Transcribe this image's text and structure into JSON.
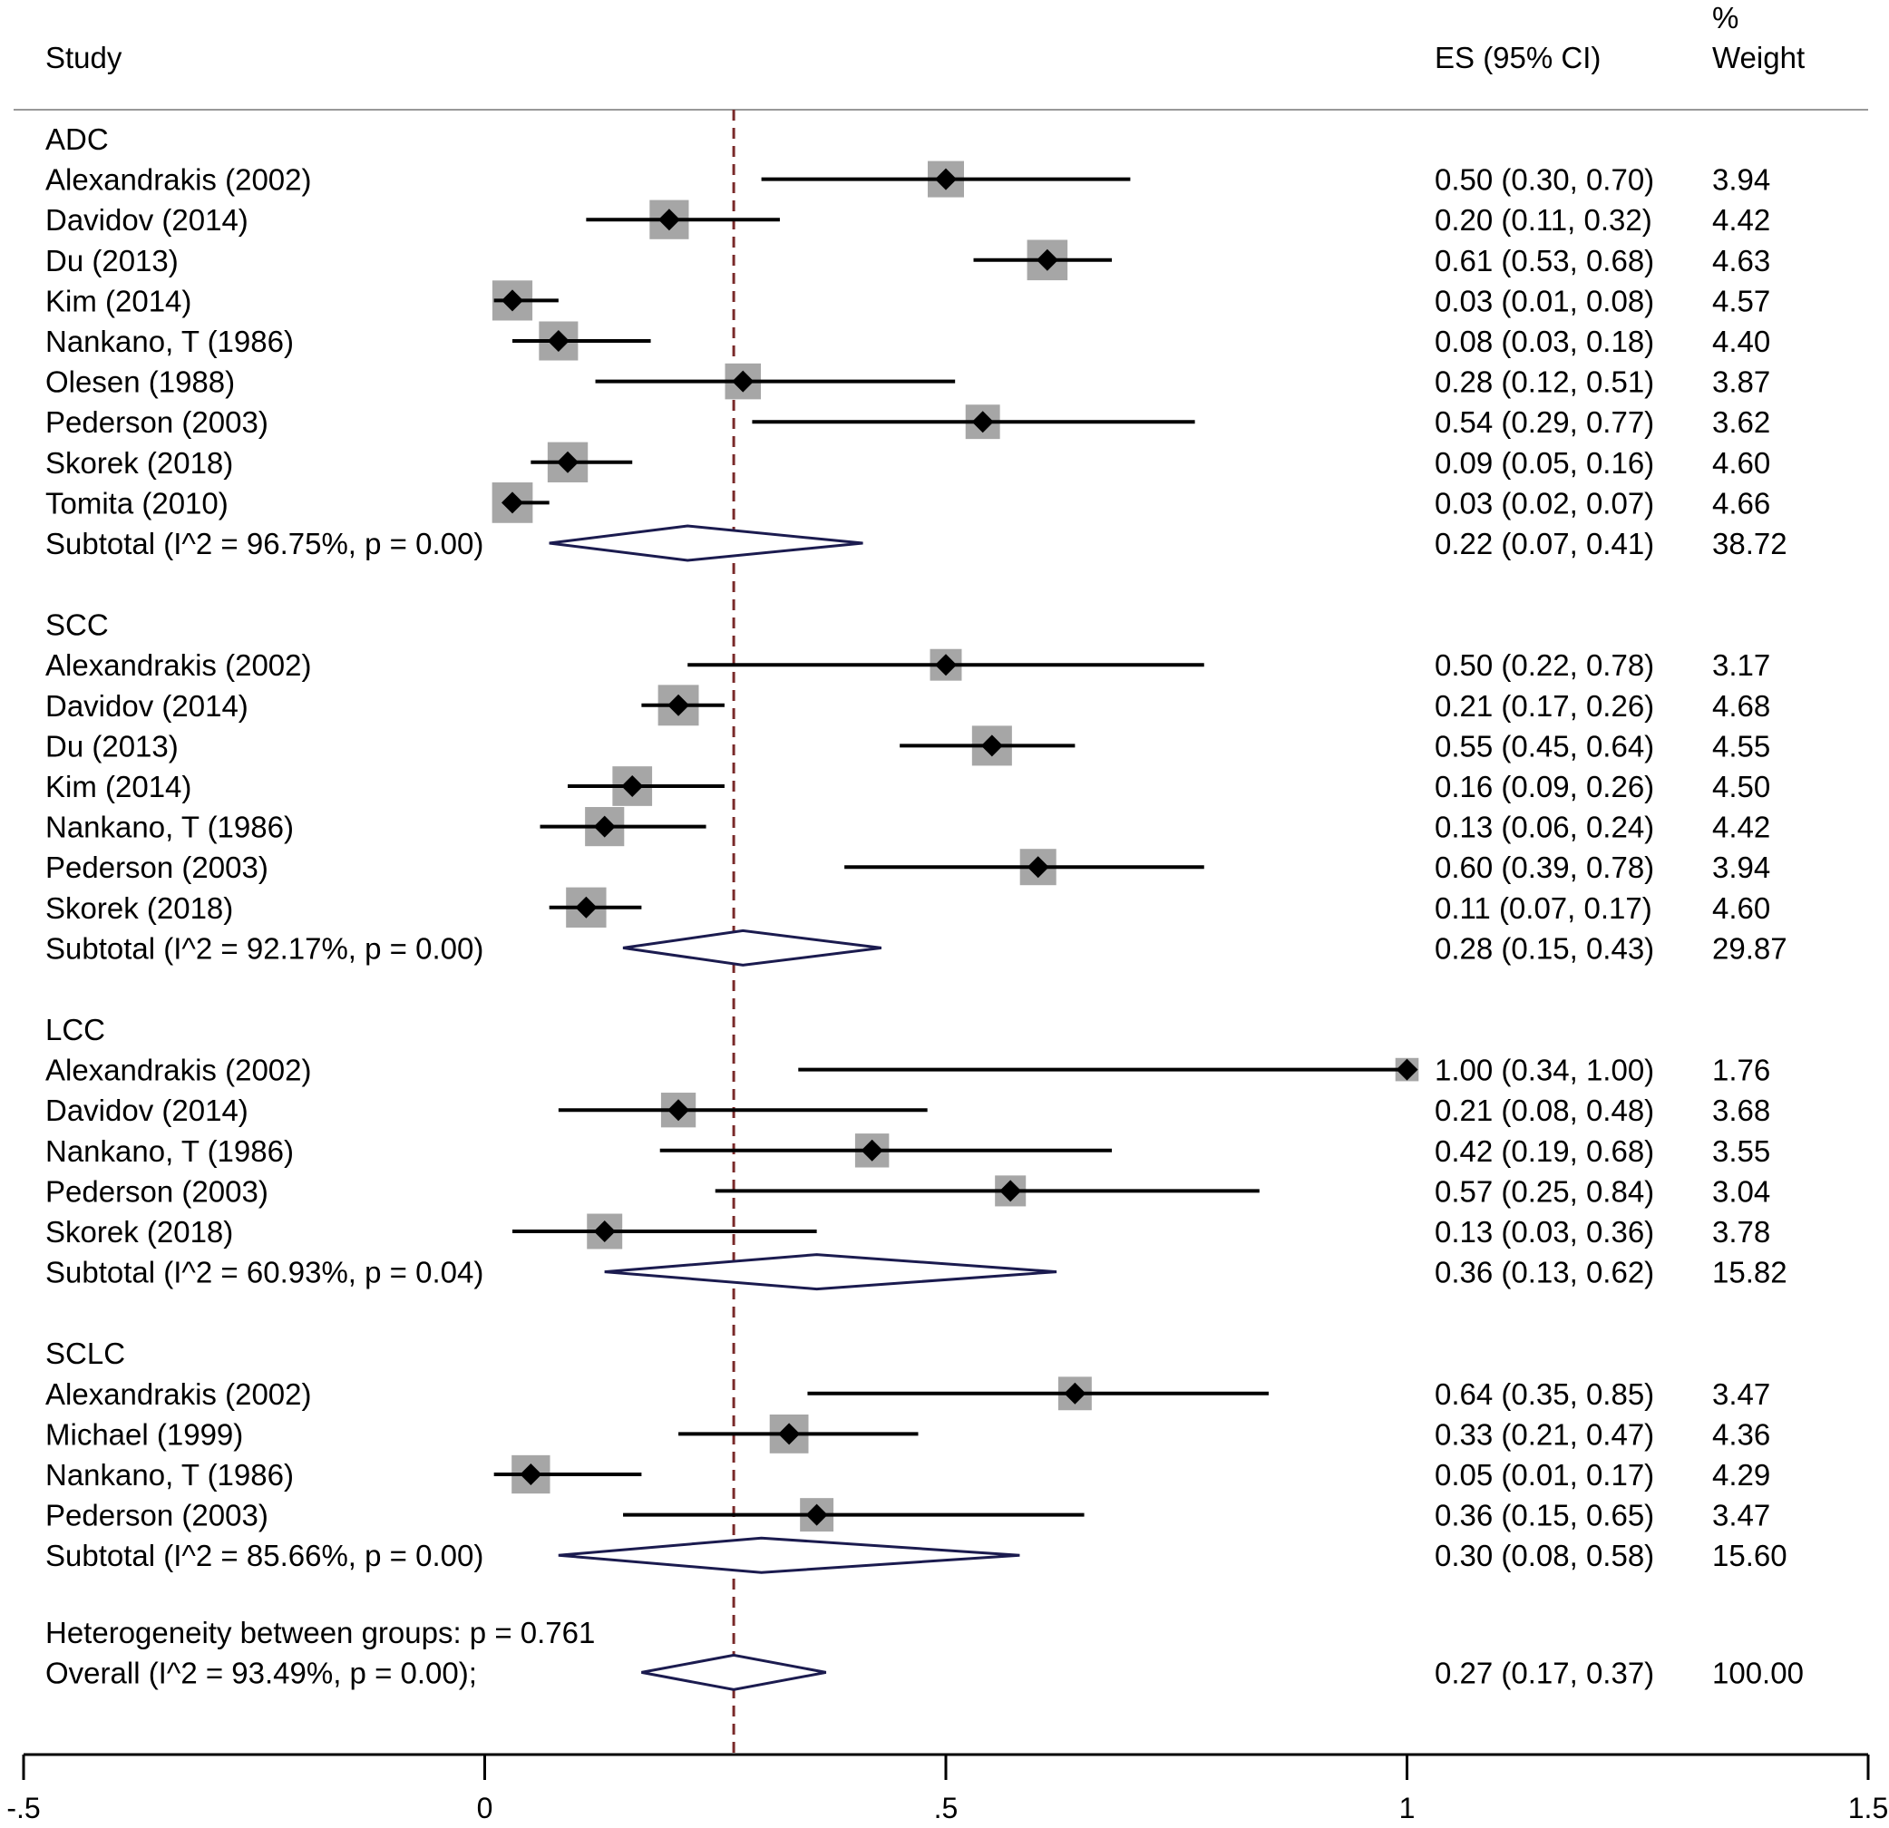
{
  "headers": {
    "study": "Study",
    "es": "ES (95% CI)",
    "weight_line1": "%",
    "weight_line2": "Weight"
  },
  "chart_data": {
    "type": "forest",
    "xlim": [
      -0.5,
      1.5
    ],
    "ticks": [
      {
        "value": -0.5,
        "label": "-.5"
      },
      {
        "value": 0,
        "label": "0"
      },
      {
        "value": 0.5,
        "label": ".5"
      },
      {
        "value": 1,
        "label": "1"
      },
      {
        "value": 1.5,
        "label": "1.5"
      }
    ],
    "reference_line": 0.27,
    "colors": {
      "marker_box": "#a6a6a6",
      "diamond": "#1b1b4f",
      "reference_line": "#7a2a2a",
      "line": "#000000"
    },
    "groups": [
      {
        "name": "ADC",
        "studies": [
          {
            "label": "Alexandrakis (2002)",
            "es": 0.5,
            "lo": 0.3,
            "hi": 0.7,
            "ci_text": "0.50 (0.30, 0.70)",
            "weight": "3.94"
          },
          {
            "label": "Davidov (2014)",
            "es": 0.2,
            "lo": 0.11,
            "hi": 0.32,
            "ci_text": "0.20 (0.11, 0.32)",
            "weight": "4.42"
          },
          {
            "label": "Du (2013)",
            "es": 0.61,
            "lo": 0.53,
            "hi": 0.68,
            "ci_text": "0.61 (0.53, 0.68)",
            "weight": "4.63"
          },
          {
            "label": "Kim (2014)",
            "es": 0.03,
            "lo": 0.01,
            "hi": 0.08,
            "ci_text": "0.03 (0.01, 0.08)",
            "weight": "4.57"
          },
          {
            "label": "Nankano, T (1986)",
            "es": 0.08,
            "lo": 0.03,
            "hi": 0.18,
            "ci_text": "0.08 (0.03, 0.18)",
            "weight": "4.40"
          },
          {
            "label": "Olesen (1988)",
            "es": 0.28,
            "lo": 0.12,
            "hi": 0.51,
            "ci_text": "0.28 (0.12, 0.51)",
            "weight": "3.87"
          },
          {
            "label": "Pederson (2003)",
            "es": 0.54,
            "lo": 0.29,
            "hi": 0.77,
            "ci_text": "0.54 (0.29, 0.77)",
            "weight": "3.62"
          },
          {
            "label": "Skorek (2018)",
            "es": 0.09,
            "lo": 0.05,
            "hi": 0.16,
            "ci_text": "0.09 (0.05, 0.16)",
            "weight": "4.60"
          },
          {
            "label": "Tomita (2010)",
            "es": 0.03,
            "lo": 0.02,
            "hi": 0.07,
            "ci_text": "0.03 (0.02, 0.07)",
            "weight": "4.66"
          }
        ],
        "subtotal": {
          "label": "Subtotal  (I^2 = 96.75%, p = 0.00)",
          "es": 0.22,
          "lo": 0.07,
          "hi": 0.41,
          "ci_text": "0.22 (0.07, 0.41)",
          "weight": "38.72"
        }
      },
      {
        "name": "SCC",
        "studies": [
          {
            "label": "Alexandrakis (2002)",
            "es": 0.5,
            "lo": 0.22,
            "hi": 0.78,
            "ci_text": "0.50 (0.22, 0.78)",
            "weight": "3.17"
          },
          {
            "label": "Davidov (2014)",
            "es": 0.21,
            "lo": 0.17,
            "hi": 0.26,
            "ci_text": "0.21 (0.17, 0.26)",
            "weight": "4.68"
          },
          {
            "label": "Du (2013)",
            "es": 0.55,
            "lo": 0.45,
            "hi": 0.64,
            "ci_text": "0.55 (0.45, 0.64)",
            "weight": "4.55"
          },
          {
            "label": "Kim (2014)",
            "es": 0.16,
            "lo": 0.09,
            "hi": 0.26,
            "ci_text": "0.16 (0.09, 0.26)",
            "weight": "4.50"
          },
          {
            "label": "Nankano, T (1986)",
            "es": 0.13,
            "lo": 0.06,
            "hi": 0.24,
            "ci_text": "0.13 (0.06, 0.24)",
            "weight": "4.42"
          },
          {
            "label": "Pederson (2003)",
            "es": 0.6,
            "lo": 0.39,
            "hi": 0.78,
            "ci_text": "0.60 (0.39, 0.78)",
            "weight": "3.94"
          },
          {
            "label": "Skorek (2018)",
            "es": 0.11,
            "lo": 0.07,
            "hi": 0.17,
            "ci_text": "0.11 (0.07, 0.17)",
            "weight": "4.60"
          }
        ],
        "subtotal": {
          "label": "Subtotal  (I^2 = 92.17%, p = 0.00)",
          "es": 0.28,
          "lo": 0.15,
          "hi": 0.43,
          "ci_text": "0.28 (0.15, 0.43)",
          "weight": "29.87"
        }
      },
      {
        "name": "LCC",
        "studies": [
          {
            "label": "Alexandrakis (2002)",
            "es": 1.0,
            "lo": 0.34,
            "hi": 1.0,
            "ci_text": "1.00 (0.34, 1.00)",
            "weight": "1.76"
          },
          {
            "label": "Davidov (2014)",
            "es": 0.21,
            "lo": 0.08,
            "hi": 0.48,
            "ci_text": "0.21 (0.08, 0.48)",
            "weight": "3.68"
          },
          {
            "label": "Nankano, T (1986)",
            "es": 0.42,
            "lo": 0.19,
            "hi": 0.68,
            "ci_text": "0.42 (0.19, 0.68)",
            "weight": "3.55"
          },
          {
            "label": "Pederson (2003)",
            "es": 0.57,
            "lo": 0.25,
            "hi": 0.84,
            "ci_text": "0.57 (0.25, 0.84)",
            "weight": "3.04"
          },
          {
            "label": "Skorek (2018)",
            "es": 0.13,
            "lo": 0.03,
            "hi": 0.36,
            "ci_text": "0.13 (0.03, 0.36)",
            "weight": "3.78"
          }
        ],
        "subtotal": {
          "label": "Subtotal  (I^2 = 60.93%, p = 0.04)",
          "es": 0.36,
          "lo": 0.13,
          "hi": 0.62,
          "ci_text": "0.36 (0.13, 0.62)",
          "weight": "15.82"
        }
      },
      {
        "name": "SCLC",
        "studies": [
          {
            "label": "Alexandrakis (2002)",
            "es": 0.64,
            "lo": 0.35,
            "hi": 0.85,
            "ci_text": "0.64 (0.35, 0.85)",
            "weight": "3.47"
          },
          {
            "label": "Michael (1999)",
            "es": 0.33,
            "lo": 0.21,
            "hi": 0.47,
            "ci_text": "0.33 (0.21, 0.47)",
            "weight": "4.36"
          },
          {
            "label": "Nankano, T (1986)",
            "es": 0.05,
            "lo": 0.01,
            "hi": 0.17,
            "ci_text": "0.05 (0.01, 0.17)",
            "weight": "4.29"
          },
          {
            "label": "Pederson (2003)",
            "es": 0.36,
            "lo": 0.15,
            "hi": 0.65,
            "ci_text": "0.36 (0.15, 0.65)",
            "weight": "3.47"
          }
        ],
        "subtotal": {
          "label": "Subtotal  (I^2 = 85.66%, p = 0.00)",
          "es": 0.3,
          "lo": 0.08,
          "hi": 0.58,
          "ci_text": "0.30 (0.08, 0.58)",
          "weight": "15.60"
        }
      }
    ],
    "heterogeneity_text": "Heterogeneity between groups: p = 0.761",
    "overall": {
      "label": "Overall  (I^2 = 93.49%, p = 0.00);",
      "es": 0.27,
      "lo": 0.17,
      "hi": 0.37,
      "ci_text": "0.27 (0.17, 0.37)",
      "weight": "100.00"
    }
  }
}
